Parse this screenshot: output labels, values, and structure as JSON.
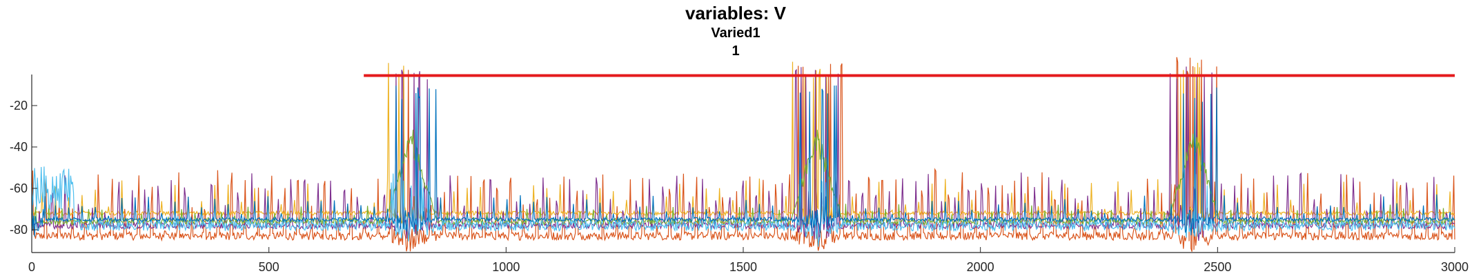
{
  "chart_data": {
    "type": "line",
    "title": "variables: V",
    "subtitle": "Varied1",
    "subtitle2": "1",
    "xlabel": "",
    "ylabel": "",
    "xlim": [
      0,
      3000
    ],
    "ylim": [
      -91,
      -5
    ],
    "x_ticks": [
      0,
      500,
      1000,
      1500,
      2000,
      2500,
      3000
    ],
    "y_ticks": [
      -20,
      -40,
      -60,
      -80
    ],
    "grid": false,
    "legend": "none",
    "threshold_line": {
      "y": -5.5,
      "x_start": 700,
      "x_end": 3000,
      "color": "#e41a1c"
    },
    "bursts": [
      800,
      1655,
      2450
    ],
    "series": [
      {
        "color": "#d95319",
        "baseline": -83,
        "spike_amplitude": 0.9,
        "burst_peak": -6,
        "noise": 4
      },
      {
        "color": "#edb120",
        "baseline": -72,
        "spike_amplitude": 0.6,
        "burst_peak": -8,
        "noise": 2
      },
      {
        "color": "#7e2f8e",
        "baseline": -78,
        "spike_amplitude": 0.8,
        "burst_peak": -8,
        "noise": 3
      },
      {
        "color": "#77ac30",
        "baseline": -76,
        "spike_amplitude": 0.4,
        "burst_peak": -35,
        "noise": 3
      },
      {
        "color": "#4dbeee",
        "baseline": -78,
        "spike_amplitude": 0.3,
        "burst_peak": -60,
        "noise": 5
      },
      {
        "color": "#0072bd",
        "baseline": -75,
        "spike_amplitude": 0.5,
        "burst_peak": -20,
        "noise": 2
      }
    ]
  }
}
